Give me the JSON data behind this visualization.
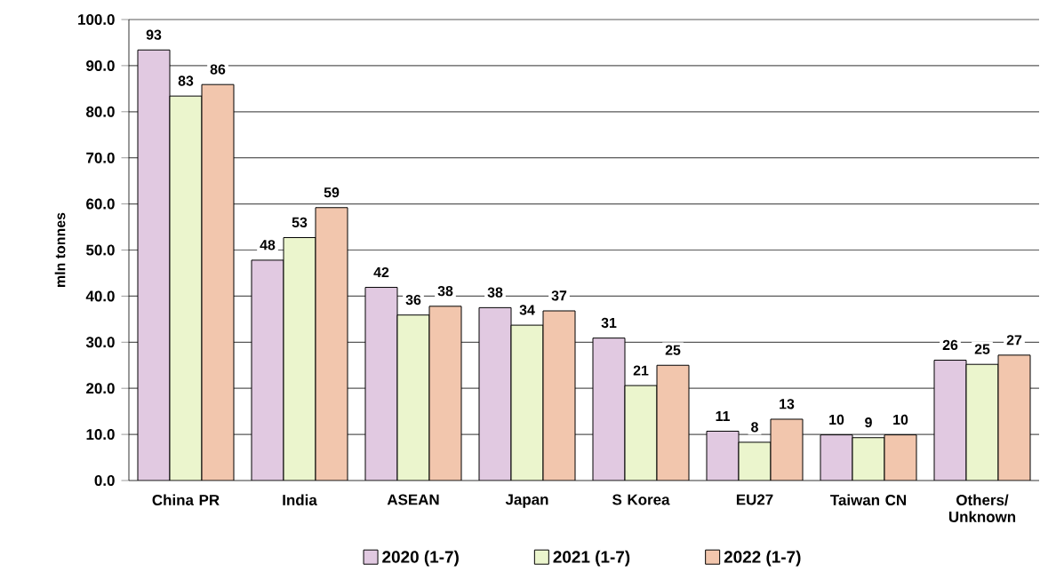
{
  "chart_data": {
    "type": "bar",
    "ylabel": "mln tonnes",
    "categories": [
      "China PR",
      "India",
      "ASEAN",
      "Japan",
      "S Korea",
      "EU27",
      "Taiwan CN",
      "Others/ Unknown"
    ],
    "series": [
      {
        "name": "2020 (1-7)",
        "color": "#e1c9e1",
        "values": [
          93.4,
          47.8,
          41.9,
          37.5,
          30.9,
          10.7,
          9.9,
          26.1
        ],
        "value_labels": [
          "93",
          "48",
          "42",
          "38",
          "31",
          "11",
          "10",
          "26"
        ]
      },
      {
        "name": "2021 (1-7)",
        "color": "#ebf5cd",
        "values": [
          83.4,
          52.7,
          35.9,
          33.7,
          20.6,
          8.3,
          9.3,
          25.2
        ],
        "value_labels": [
          "83",
          "53",
          "36",
          "34",
          "21",
          "8",
          "9",
          "25"
        ]
      },
      {
        "name": "2022 (1-7)",
        "color": "#f2c6ad",
        "values": [
          85.9,
          59.2,
          37.8,
          36.8,
          25.0,
          13.3,
          9.9,
          27.2
        ],
        "value_labels": [
          "86",
          "59",
          "38",
          "37",
          "25",
          "13",
          "10",
          "27"
        ]
      }
    ],
    "ylim": [
      0,
      100
    ],
    "yticks": [
      {
        "value": 0,
        "label": "0.0"
      },
      {
        "value": 10,
        "label": "10.0"
      },
      {
        "value": 20,
        "label": "20.0"
      },
      {
        "value": 30,
        "label": "30.0"
      },
      {
        "value": 40,
        "label": "40.0"
      },
      {
        "value": 50,
        "label": "50.0"
      },
      {
        "value": 60,
        "label": "60.0"
      },
      {
        "value": 70,
        "label": "70.0"
      },
      {
        "value": 80,
        "label": "80.0"
      },
      {
        "value": 90,
        "label": "90.0"
      },
      {
        "value": 100,
        "label": "100.0"
      }
    ],
    "grid": "y",
    "legend": "bottom"
  }
}
